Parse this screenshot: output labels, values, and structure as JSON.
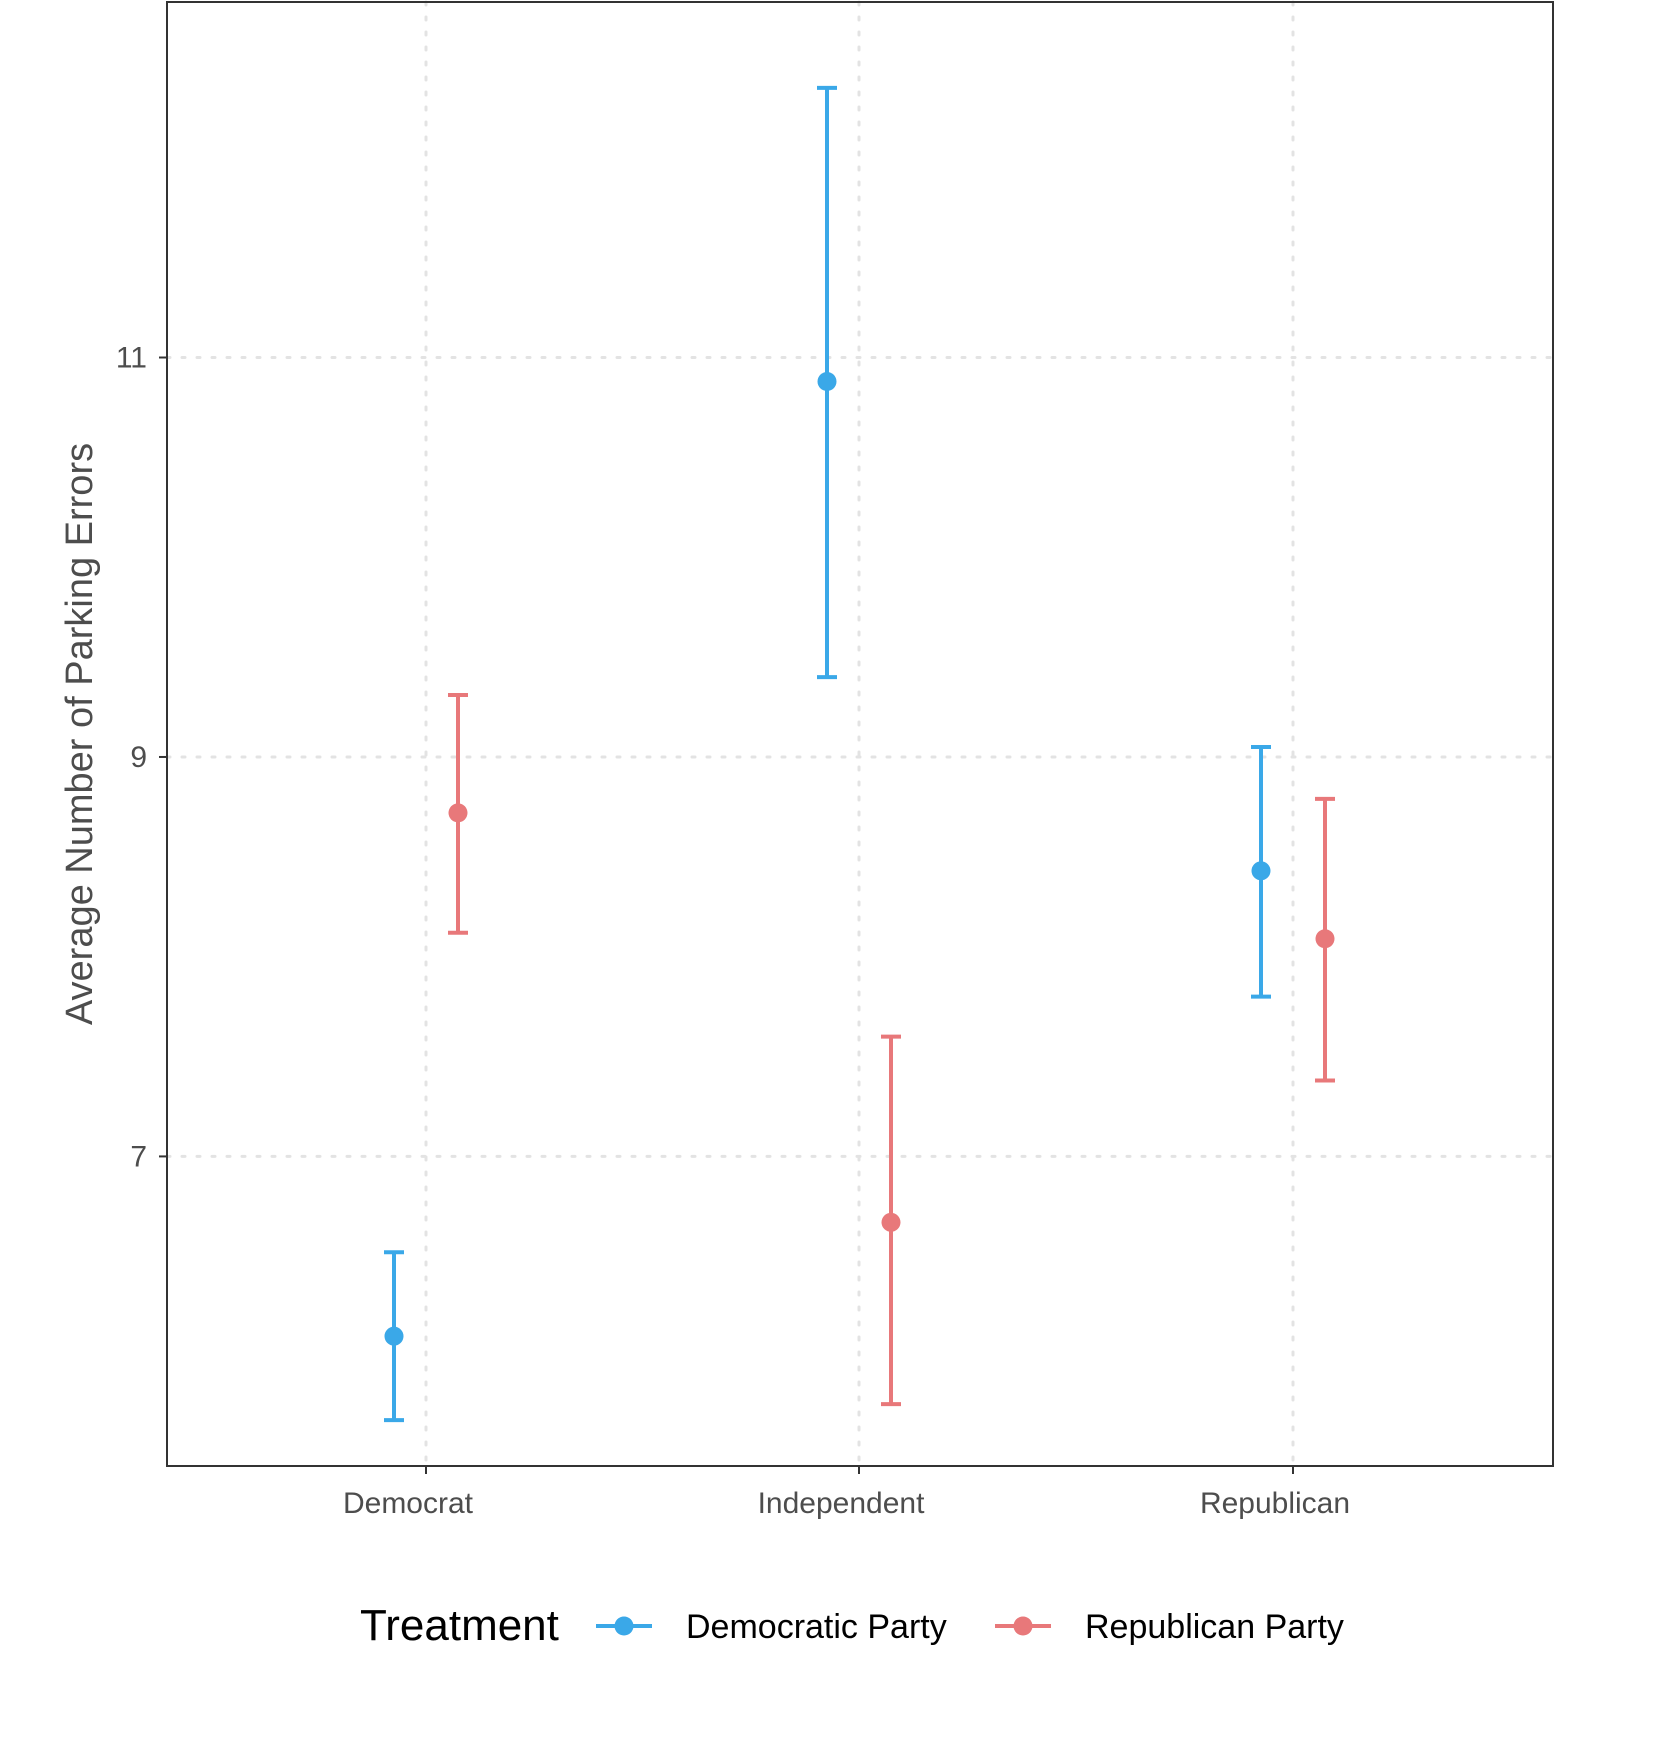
{
  "chart_data": {
    "type": "scatter",
    "subtype": "point-with-error-bars",
    "title": "",
    "xlabel": "",
    "ylabel": "Average Number of Parking Errors",
    "categories": [
      "Democrat",
      "Independent",
      "Republican"
    ],
    "ylim": [
      5.45,
      12.78
    ],
    "yticks": [
      7,
      9,
      11
    ],
    "grid": true,
    "grid_style": "dotted",
    "legend_title": "Treatment",
    "legend_position": "bottom",
    "series": [
      {
        "name": "Democratic Party",
        "color": "#3AA8E8",
        "values": [
          6.1,
          10.88,
          8.43
        ],
        "lower": [
          5.68,
          9.4,
          7.8
        ],
        "upper": [
          6.52,
          12.35,
          9.05
        ]
      },
      {
        "name": "Republican Party",
        "color": "#E8787A",
        "values": [
          8.72,
          6.67,
          8.09
        ],
        "lower": [
          8.12,
          5.76,
          7.38
        ],
        "upper": [
          9.31,
          7.6,
          8.79
        ]
      }
    ]
  }
}
